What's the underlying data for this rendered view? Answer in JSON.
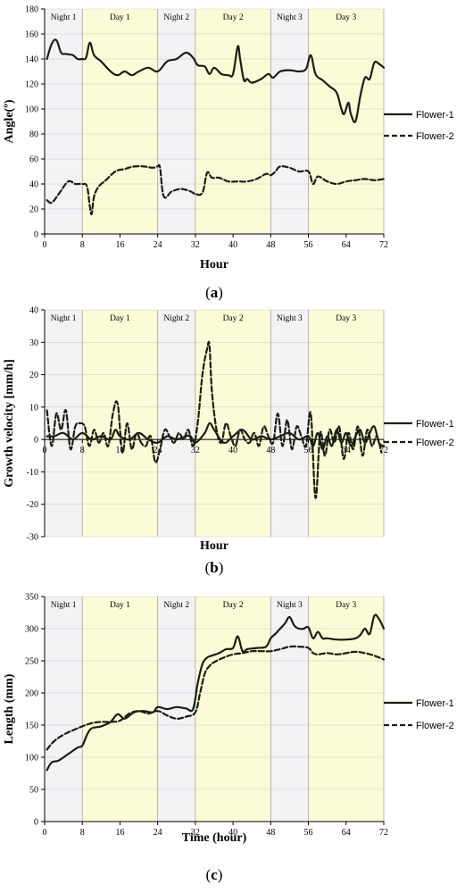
{
  "chart_data": [
    {
      "type": "line",
      "panel": "(a)",
      "xlabel": "Hour",
      "ylabel": "Angle(º)",
      "xlim": [
        0,
        72
      ],
      "ylim": [
        0,
        180
      ],
      "xticks": [
        0,
        8,
        16,
        24,
        32,
        40,
        48,
        56,
        64,
        72
      ],
      "yticks": [
        0,
        20,
        40,
        60,
        80,
        100,
        120,
        140,
        160,
        180
      ],
      "periods": [
        {
          "label": "Night 1",
          "start": 0,
          "end": 8,
          "kind": "night"
        },
        {
          "label": "Day 1",
          "start": 8,
          "end": 24,
          "kind": "day"
        },
        {
          "label": "Night 2",
          "start": 24,
          "end": 32,
          "kind": "night"
        },
        {
          "label": "Day 2",
          "start": 32,
          "end": 48,
          "kind": "day"
        },
        {
          "label": "Night 3",
          "start": 48,
          "end": 56,
          "kind": "night"
        },
        {
          "label": "Day 3",
          "start": 56,
          "end": 72,
          "kind": "day"
        }
      ],
      "legend_position": "right",
      "series": [
        {
          "name": "Flower-1",
          "style": "solid",
          "x": [
            0.5,
            1.5,
            2.5,
            3.5,
            4.5,
            6,
            7,
            8,
            8.8,
            9.6,
            10.5,
            12,
            14,
            15.5,
            17,
            18.5,
            20,
            22,
            24,
            26,
            28,
            30,
            31.5,
            32.5,
            34,
            35,
            36,
            37.5,
            39,
            40,
            41,
            41.5,
            42.3,
            43,
            44,
            46,
            47.5,
            48.5,
            50,
            52,
            54,
            55.5,
            56.5,
            57.5,
            59,
            60.5,
            62,
            63,
            63.6,
            64.5,
            65,
            66,
            67,
            68,
            69,
            70,
            71,
            72
          ],
          "y": [
            140,
            152,
            155,
            145,
            144,
            143,
            140,
            140,
            141,
            153,
            143,
            138,
            130,
            127,
            130,
            127,
            130,
            133,
            130,
            138,
            140,
            145,
            141,
            135,
            134,
            128,
            133,
            128,
            127,
            128,
            150,
            140,
            123,
            124,
            121,
            124,
            128,
            125,
            130,
            131,
            130,
            132,
            143,
            128,
            123,
            118,
            113,
            100,
            96,
            105,
            96,
            90,
            110,
            125,
            124,
            137,
            136,
            133
          ]
        },
        {
          "name": "Flower-2",
          "style": "dashed",
          "x": [
            0.5,
            1.5,
            3,
            5,
            6.5,
            8,
            9,
            9.6,
            10,
            10.5,
            11.5,
            13,
            15,
            17,
            19,
            21,
            23,
            24,
            24.5,
            25.3,
            27,
            29,
            31,
            32,
            33.5,
            34.5,
            35.5,
            37,
            39,
            41,
            43,
            45,
            47,
            48,
            49,
            50,
            52,
            54,
            56,
            57,
            58,
            60,
            62,
            64,
            66,
            68,
            70,
            72
          ],
          "y": [
            27,
            25,
            32,
            42,
            40,
            40,
            38,
            22,
            16,
            30,
            38,
            43,
            50,
            52,
            54,
            54,
            53,
            54,
            53,
            30,
            34,
            36,
            34,
            32,
            33,
            49,
            45,
            45,
            42,
            42,
            42,
            44,
            48,
            47,
            50,
            54,
            53,
            50,
            50,
            40,
            46,
            42,
            40,
            42,
            43,
            44,
            43,
            44
          ]
        }
      ]
    },
    {
      "type": "line",
      "panel": "(b)",
      "xlabel": "Hour",
      "ylabel": "Growth velocity [mm/h]",
      "xlim": [
        0,
        72
      ],
      "ylim": [
        -30,
        40
      ],
      "xticks": [
        0,
        8,
        16,
        24,
        32,
        40,
        48,
        56,
        64,
        72
      ],
      "yticks": [
        -30,
        -20,
        -10,
        0,
        10,
        20,
        30,
        40
      ],
      "periods": [
        {
          "label": "Night 1",
          "start": 0,
          "end": 8,
          "kind": "night"
        },
        {
          "label": "Day 1",
          "start": 8,
          "end": 24,
          "kind": "day"
        },
        {
          "label": "Night 2",
          "start": 24,
          "end": 32,
          "kind": "night"
        },
        {
          "label": "Day 2",
          "start": 32,
          "end": 48,
          "kind": "day"
        },
        {
          "label": "Night 3",
          "start": 48,
          "end": 56,
          "kind": "night"
        },
        {
          "label": "Day 3",
          "start": 56,
          "end": 72,
          "kind": "day"
        }
      ],
      "legend_position": "right",
      "series": [
        {
          "name": "Flower-1",
          "style": "solid",
          "x": [
            0.5,
            2,
            4,
            6,
            8,
            10,
            12,
            14,
            15,
            16,
            18,
            20,
            22,
            24,
            26,
            28,
            30,
            31,
            32,
            34,
            35,
            36,
            38,
            40,
            42,
            44,
            46,
            48,
            50,
            52,
            54,
            56,
            57,
            58,
            59,
            60,
            61,
            62,
            63,
            64,
            65,
            66,
            67,
            68,
            69,
            70,
            71,
            72
          ],
          "y": [
            1,
            1,
            2,
            0,
            2,
            0,
            1,
            0,
            3,
            1,
            0,
            2,
            0,
            -1,
            1,
            0,
            1,
            1,
            -1,
            2,
            5,
            3,
            -1,
            1,
            3,
            0,
            1,
            0,
            1,
            2,
            0,
            1,
            -2,
            2,
            -3,
            1,
            -2,
            3,
            -1,
            2,
            -2,
            1,
            3,
            -1,
            2,
            4,
            -1,
            -2
          ]
        },
        {
          "name": "Flower-2",
          "style": "dashed",
          "x": [
            0.5,
            1.5,
            2.5,
            3.5,
            4.5,
            5.5,
            6.5,
            7.5,
            8.5,
            9.5,
            10.5,
            11.5,
            12.5,
            13.5,
            14.5,
            15.5,
            16.5,
            17.5,
            18.5,
            19.5,
            20.5,
            21.5,
            22.5,
            23.5,
            24.5,
            25.5,
            26.5,
            27.5,
            28.5,
            29.5,
            30.5,
            31.5,
            32.5,
            33.5,
            34.5,
            35,
            35.5,
            36.5,
            37.5,
            38.5,
            39.5,
            40.5,
            41.5,
            42.5,
            43.5,
            44.5,
            45.5,
            46.5,
            47.5,
            48.5,
            49.5,
            50.5,
            51.5,
            52.5,
            53.5,
            54.5,
            55.5,
            56.5,
            57.5,
            58.5,
            59.5,
            60.5,
            61.5,
            62.5,
            63.5,
            64.5,
            65.5,
            66.5,
            67.5,
            68.5,
            69.5,
            70.5,
            71.5
          ],
          "y": [
            9,
            -2,
            8,
            3,
            9,
            -3,
            4,
            5,
            4,
            -2,
            3,
            -1,
            2,
            -2,
            8,
            11,
            -4,
            5,
            -3,
            2,
            -1,
            -2,
            1,
            -7,
            -3,
            3,
            1,
            -1,
            2,
            0,
            3,
            -2,
            5,
            20,
            28,
            29,
            15,
            3,
            -1,
            5,
            1,
            -2,
            3,
            0,
            -1,
            2,
            -2,
            4,
            1,
            -1,
            8,
            -2,
            6,
            -3,
            4,
            1,
            -2,
            8,
            -18,
            2,
            -5,
            3,
            -1,
            4,
            -6,
            2,
            -3,
            4,
            -5,
            3,
            -2,
            1,
            -4
          ]
        }
      ]
    },
    {
      "type": "line",
      "panel": "(c)",
      "xlabel": "Time (hour)",
      "ylabel": "Length (mm)",
      "xlim": [
        0,
        72
      ],
      "ylim": [
        0,
        350
      ],
      "xticks": [
        0,
        8,
        16,
        24,
        32,
        40,
        48,
        56,
        64,
        72
      ],
      "yticks": [
        0,
        50,
        100,
        150,
        200,
        250,
        300,
        350
      ],
      "periods": [
        {
          "label": "Night 1",
          "start": 0,
          "end": 8,
          "kind": "night"
        },
        {
          "label": "Day 1",
          "start": 8,
          "end": 24,
          "kind": "day"
        },
        {
          "label": "Night 2",
          "start": 24,
          "end": 32,
          "kind": "night"
        },
        {
          "label": "Day 2",
          "start": 32,
          "end": 48,
          "kind": "day"
        },
        {
          "label": "Night 3",
          "start": 48,
          "end": 56,
          "kind": "night"
        },
        {
          "label": "Day 3",
          "start": 56,
          "end": 72,
          "kind": "day"
        }
      ],
      "legend_position": "right",
      "series": [
        {
          "name": "Flower-1",
          "style": "solid",
          "x": [
            0.5,
            1.5,
            3,
            5,
            7,
            8,
            9,
            10,
            12,
            14,
            15.5,
            17,
            19,
            21,
            23,
            24,
            26,
            28,
            30,
            31.5,
            32.5,
            33.5,
            34.5,
            35.5,
            37,
            38.5,
            40,
            41,
            42,
            43,
            45,
            47,
            48,
            49,
            50,
            51,
            52,
            53,
            54,
            55,
            56,
            57,
            58,
            59,
            60,
            62,
            64,
            66,
            67,
            68,
            69,
            70,
            71,
            72
          ],
          "y": [
            80,
            92,
            95,
            105,
            115,
            118,
            135,
            145,
            148,
            155,
            167,
            160,
            170,
            172,
            170,
            178,
            175,
            178,
            176,
            175,
            215,
            245,
            255,
            258,
            262,
            268,
            270,
            288,
            265,
            268,
            270,
            272,
            285,
            292,
            300,
            308,
            318,
            305,
            300,
            300,
            302,
            285,
            295,
            285,
            285,
            283,
            283,
            285,
            290,
            300,
            292,
            320,
            315,
            300
          ]
        },
        {
          "name": "Flower-2",
          "style": "dashed",
          "x": [
            0.5,
            2,
            4,
            6,
            8,
            10,
            12,
            14,
            16,
            18,
            20,
            22,
            24,
            26,
            28,
            30,
            32,
            33,
            34,
            35,
            36,
            38,
            40,
            42,
            44,
            46,
            48,
            50,
            52,
            54,
            56,
            57,
            58,
            60,
            62,
            64,
            66,
            68,
            70,
            72
          ],
          "y": [
            112,
            125,
            135,
            142,
            148,
            153,
            155,
            155,
            157,
            168,
            172,
            168,
            172,
            165,
            160,
            163,
            170,
            200,
            230,
            242,
            248,
            255,
            260,
            262,
            265,
            265,
            265,
            268,
            272,
            272,
            270,
            262,
            260,
            262,
            260,
            262,
            264,
            262,
            258,
            252
          ]
        }
      ]
    }
  ]
}
